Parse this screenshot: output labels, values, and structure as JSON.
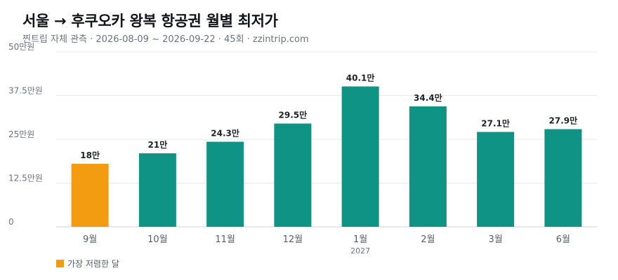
{
  "title": "서울 → 후쿠오카 왕복 항공권 월별 최저가",
  "subtitle": "찐트립 자체 관측 · 2026-08-09 ~ 2026-09-22 · 45회 · zzintrip.com",
  "colors": {
    "highlight": "#f39c12",
    "bar": "#0e9384",
    "grid": "#e6e8eb",
    "axis_text": "#6b7380"
  },
  "legend": {
    "label": "가장 저렴한 달",
    "color": "#f39c12"
  },
  "chart_data": {
    "type": "bar",
    "categories": [
      "9월",
      "10월",
      "11월",
      "12월",
      "1월",
      "2월",
      "3월",
      "6월"
    ],
    "sub_labels": [
      "",
      "",
      "",
      "",
      "2027",
      "",
      "",
      ""
    ],
    "values": [
      18,
      21,
      24.3,
      29.5,
      40.1,
      34.4,
      27.1,
      27.9
    ],
    "value_labels": [
      "18만",
      "21만",
      "24.3만",
      "29.5만",
      "40.1만",
      "34.4만",
      "27.1만",
      "27.9만"
    ],
    "highlight_index": 0,
    "ylim": [
      0,
      50
    ],
    "yticks": [
      0,
      12.5,
      25,
      37.5,
      50
    ],
    "ytick_labels": [
      "0",
      "12.5만원",
      "25만원",
      "37.5만원",
      "50만원"
    ],
    "grid": true,
    "legend_position": "bottom-left"
  }
}
